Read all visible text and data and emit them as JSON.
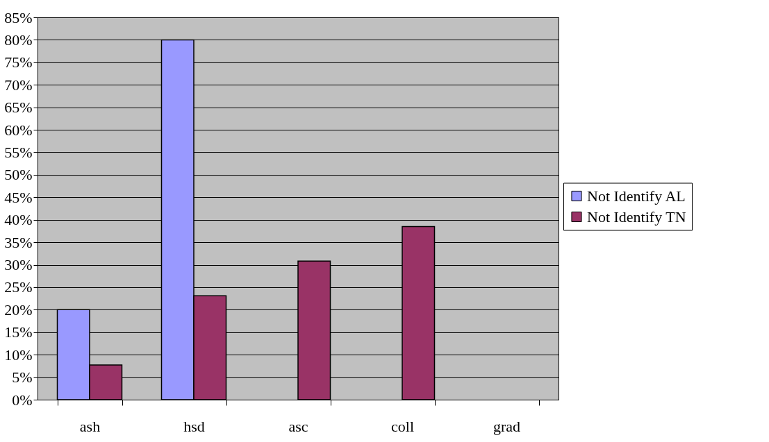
{
  "chart_data": {
    "type": "bar",
    "categories": [
      "ash",
      "hsd",
      "asc",
      "coll",
      "grad"
    ],
    "series": [
      {
        "name": "Not Identify AL",
        "color": "#9999ff",
        "values": [
          20,
          80,
          null,
          null,
          null
        ]
      },
      {
        "name": "Not Identify TN",
        "color": "#993366",
        "values": [
          7.7,
          23.1,
          30.8,
          38.5,
          null
        ]
      }
    ],
    "ylim": [
      0,
      85
    ],
    "yticks": [
      {
        "value": 0,
        "label": "0%"
      },
      {
        "value": 5,
        "label": "5%"
      },
      {
        "value": 10,
        "label": "10%"
      },
      {
        "value": 15,
        "label": "15%"
      },
      {
        "value": 20,
        "label": "20%"
      },
      {
        "value": 25,
        "label": "25%"
      },
      {
        "value": 30,
        "label": "30%"
      },
      {
        "value": 35,
        "label": "35%"
      },
      {
        "value": 40,
        "label": "40%"
      },
      {
        "value": 45,
        "label": "45%"
      },
      {
        "value": 50,
        "label": "50%"
      },
      {
        "value": 55,
        "label": "55%"
      },
      {
        "value": 60,
        "label": "60%"
      },
      {
        "value": 65,
        "label": "65%"
      },
      {
        "value": 70,
        "label": "70%"
      },
      {
        "value": 75,
        "label": "75%"
      },
      {
        "value": 80,
        "label": "80%"
      },
      {
        "value": 85,
        "label": "85%"
      }
    ],
    "grid": "y",
    "legend": "right"
  }
}
